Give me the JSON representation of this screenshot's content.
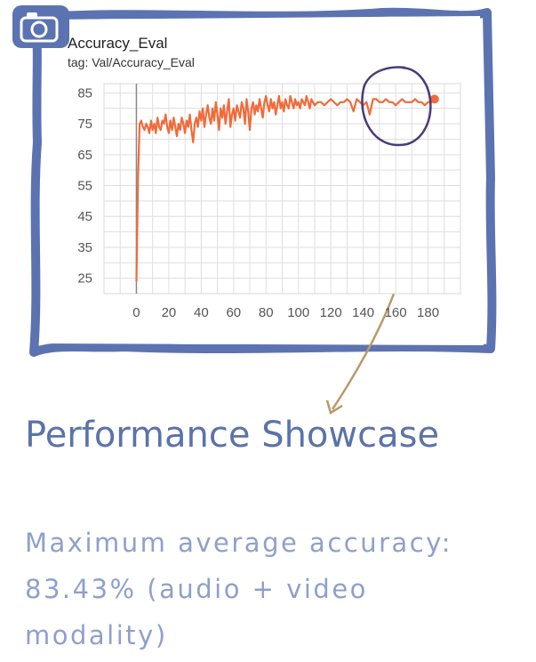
{
  "chart_data": {
    "type": "line",
    "title": "Accuracy_Eval",
    "subtitle": "tag: Val/Accuracy_Eval",
    "xlabel": "",
    "ylabel": "",
    "xlim": [
      -20,
      200
    ],
    "ylim": [
      20,
      88
    ],
    "xticks": [
      "0",
      "20",
      "40",
      "60",
      "80",
      "100",
      "120",
      "140",
      "160",
      "180"
    ],
    "yticks": [
      "25",
      "35",
      "45",
      "55",
      "65",
      "75",
      "85"
    ],
    "grid": true,
    "series": [
      {
        "color": "#f26a3a",
        "x": [
          0,
          1,
          2,
          3,
          4,
          5,
          6,
          7,
          8,
          9,
          10,
          11,
          12,
          13,
          14,
          15,
          16,
          17,
          18,
          19,
          20,
          21,
          22,
          23,
          24,
          25,
          26,
          27,
          28,
          29,
          30,
          31,
          32,
          33,
          34,
          35,
          36,
          37,
          38,
          39,
          40,
          41,
          42,
          43,
          44,
          45,
          46,
          47,
          48,
          49,
          50,
          51,
          52,
          53,
          54,
          55,
          56,
          57,
          58,
          59,
          60,
          61,
          62,
          63,
          64,
          65,
          66,
          67,
          68,
          69,
          70,
          71,
          72,
          73,
          74,
          75,
          76,
          77,
          78,
          79,
          80,
          81,
          82,
          83,
          84,
          85,
          86,
          87,
          88,
          89,
          90,
          91,
          92,
          93,
          94,
          95,
          96,
          97,
          98,
          99,
          100,
          101,
          102,
          103,
          104,
          105,
          106,
          107,
          108,
          109,
          110,
          112,
          114,
          116,
          118,
          120,
          122,
          124,
          126,
          128,
          130,
          132,
          134,
          136,
          138,
          140,
          142,
          144,
          146,
          148,
          150,
          152,
          154,
          156,
          158,
          160,
          162,
          164,
          166,
          168,
          170,
          172,
          174,
          176,
          178,
          180,
          182,
          184
        ],
        "y": [
          24,
          58,
          75,
          76,
          74,
          73,
          75,
          74,
          72,
          76,
          73,
          75,
          72,
          77,
          74,
          73,
          76,
          75,
          78,
          74,
          72,
          76,
          73,
          77,
          74,
          71,
          75,
          73,
          77,
          75,
          72,
          76,
          74,
          78,
          73,
          69,
          75,
          77,
          74,
          79,
          76,
          80,
          74,
          78,
          81,
          77,
          75,
          80,
          76,
          82,
          78,
          73,
          80,
          77,
          81,
          75,
          79,
          83,
          74,
          78,
          80,
          76,
          81,
          79,
          77,
          82,
          80,
          75,
          83,
          79,
          73,
          80,
          82,
          78,
          81,
          79,
          83,
          80,
          77,
          82,
          84,
          81,
          79,
          83,
          80,
          82,
          78,
          81,
          84,
          80,
          82,
          79,
          83,
          81,
          80,
          84,
          82,
          80,
          83,
          81,
          82,
          80,
          83,
          82,
          81,
          84,
          82,
          80,
          83,
          82,
          81,
          82,
          82,
          81,
          82,
          83,
          82,
          81,
          82,
          82,
          83,
          82,
          79,
          83,
          82,
          81,
          82,
          78,
          83,
          83,
          82,
          82,
          83,
          82,
          82,
          81,
          82,
          83,
          82,
          82,
          82,
          83,
          82,
          82,
          81,
          82,
          82,
          83
        ]
      }
    ],
    "annotations": []
  },
  "headline": "Performance Showcase",
  "description": "Maximum average accuracy: 83.43% (audio + video modality)",
  "icons": {
    "camera": "camera-icon"
  },
  "colors": {
    "frame": "#5b73b0",
    "line": "#f26a3a",
    "circle": "#4a3a7a",
    "arrow": "#b89a6a",
    "headline": "#5b73aa",
    "text": "#8ea0cc"
  }
}
